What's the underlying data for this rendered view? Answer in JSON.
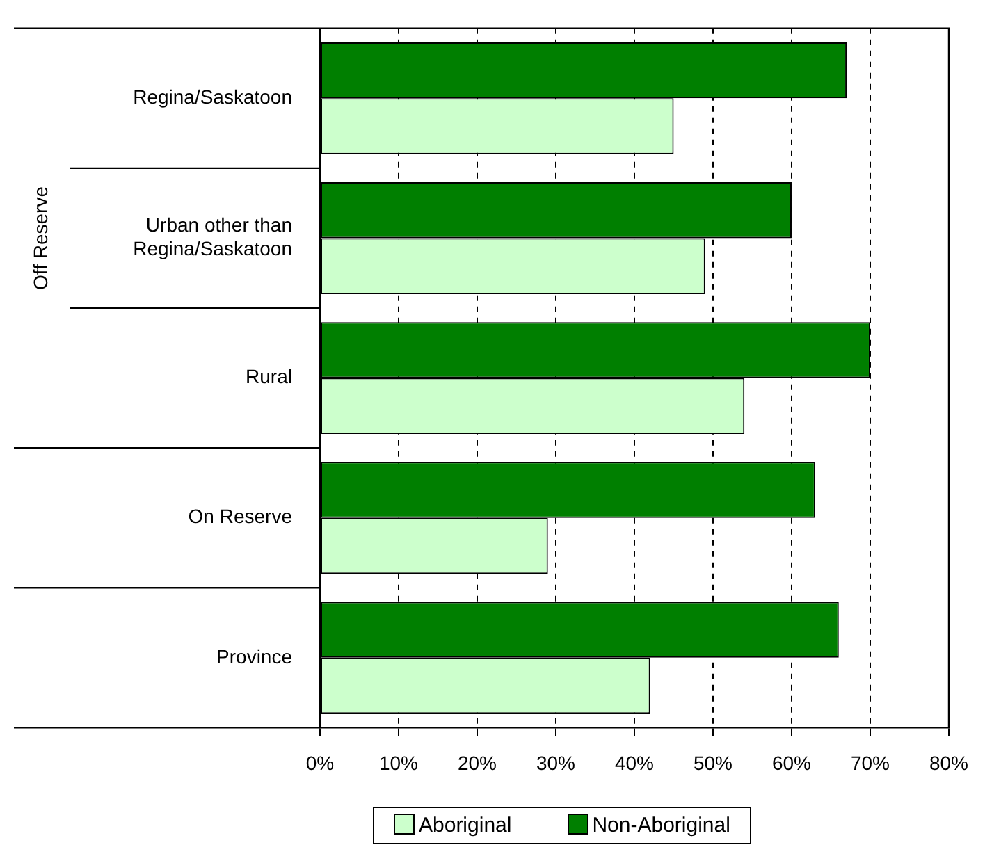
{
  "chart_data": {
    "type": "bar",
    "orientation": "horizontal",
    "categories": [
      "Regina/Saskatoon",
      "Urban other than Regina/Saskatoon",
      "Rural",
      "On Reserve",
      "Province"
    ],
    "series": [
      {
        "name": "Aboriginal",
        "color": "#ccffcc",
        "values": [
          45,
          49,
          54,
          29,
          42
        ]
      },
      {
        "name": "Non-Aboriginal",
        "color": "#007f00",
        "values": [
          67,
          60,
          70,
          63,
          66
        ]
      }
    ],
    "xlim": [
      0,
      80
    ],
    "xticks": [
      {
        "value": 0,
        "label": "0%"
      },
      {
        "value": 10,
        "label": "10%"
      },
      {
        "value": 20,
        "label": "20%"
      },
      {
        "value": 30,
        "label": "30%"
      },
      {
        "value": 40,
        "label": "40%"
      },
      {
        "value": 50,
        "label": "50%"
      },
      {
        "value": 60,
        "label": "60%"
      },
      {
        "value": 70,
        "label": "70%"
      },
      {
        "value": 80,
        "label": "80%"
      }
    ],
    "grid": "x",
    "legend": "bottom",
    "annotations": [
      "Off Reserve"
    ]
  }
}
